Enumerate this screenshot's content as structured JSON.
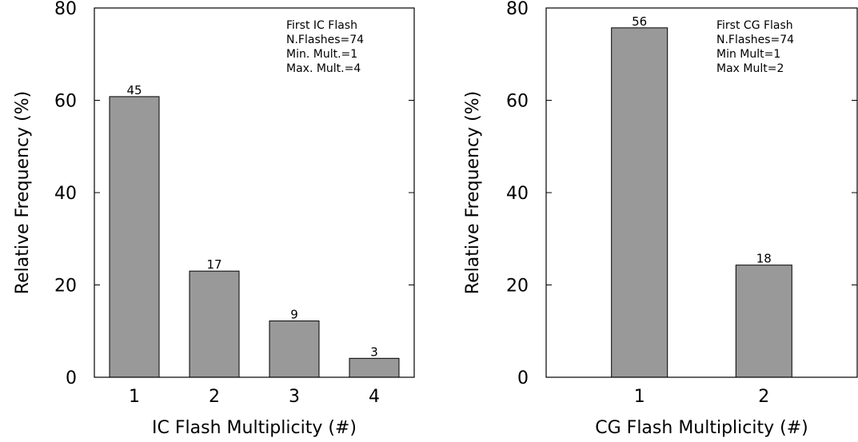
{
  "chart_data": [
    {
      "type": "bar",
      "categories": [
        "1",
        "2",
        "3",
        "4"
      ],
      "values": [
        60.8,
        23.0,
        12.2,
        4.1
      ],
      "data_labels": [
        "45",
        "17",
        "9",
        "3"
      ],
      "xlabel": "IC Flash Multiplicity (#)",
      "ylabel": "Relative Frequency (%)",
      "xlim": [
        0.5,
        4.5
      ],
      "ylim": [
        0,
        80
      ],
      "yticks": [
        "0",
        "20",
        "40",
        "60",
        "80"
      ],
      "grid": false,
      "annotations": [
        "First IC Flash",
        "N.Flashes=74",
        "Min. Mult.=1",
        "Max. Mult.=4"
      ],
      "bar_color": "#999999"
    },
    {
      "type": "bar",
      "categories": [
        "1",
        "2"
      ],
      "values": [
        75.7,
        24.3
      ],
      "data_labels": [
        "56",
        "18"
      ],
      "xlabel": "CG Flash Multiplicity (#)",
      "ylabel": "Relative Frequency (%)",
      "xlim": [
        0.25,
        2.75
      ],
      "ylim": [
        0,
        80
      ],
      "yticks": [
        "0",
        "20",
        "40",
        "60",
        "80"
      ],
      "grid": false,
      "annotations": [
        "First CG Flash",
        "N.Flashes=74",
        "Min Mult=1",
        "Max Mult=2"
      ],
      "bar_color": "#999999"
    }
  ]
}
